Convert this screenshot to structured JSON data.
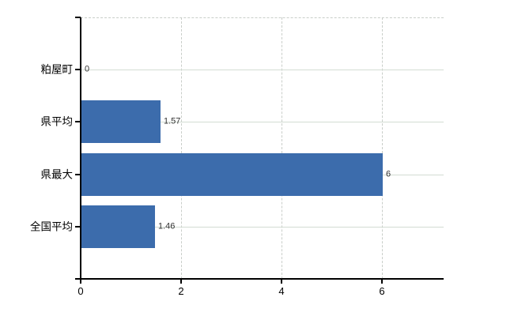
{
  "page": {
    "background": "#ffffff"
  },
  "chart_data": {
    "type": "bar",
    "orientation": "horizontal",
    "title": "",
    "xlabel": "",
    "ylabel": "",
    "categories": [
      "粕屋町",
      "県平均",
      "県最大",
      "全国平均"
    ],
    "values": [
      0,
      1.57,
      6,
      1.46
    ],
    "value_labels": [
      "0",
      "1.57",
      "6",
      "1.46"
    ],
    "xticks": [
      0,
      2,
      4,
      6
    ],
    "xtick_labels": [
      "0",
      "2",
      "4",
      "6"
    ],
    "xlim": [
      0,
      7.23
    ],
    "grid": true,
    "legend": false,
    "gridline_style": "vertical ticks dashed, category rows solid, dashed top border",
    "bar_color": "#3c6cac",
    "axis_color": "#000000",
    "row_gridline_color": "#d3dcd3",
    "dashed_gridline_color": "#c9cec9",
    "value_label_color": "#333333"
  }
}
